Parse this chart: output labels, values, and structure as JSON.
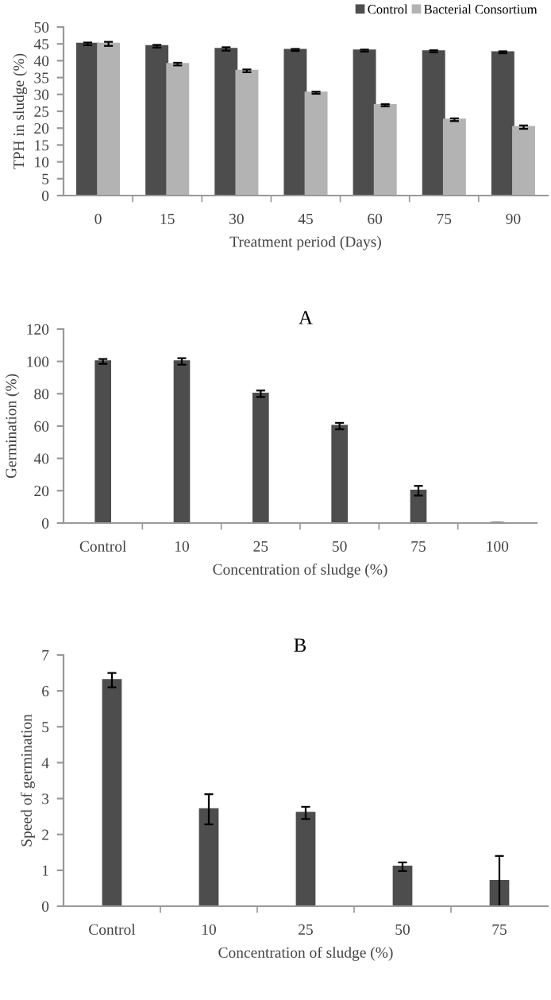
{
  "chart_data": [
    {
      "type": "bar",
      "xlabel": "Treatment period (Days)",
      "ylabel": "TPH in sludge (%)",
      "annotations": [
        "A"
      ],
      "categories": [
        "0",
        "15",
        "30",
        "45",
        "60",
        "75",
        "90"
      ],
      "ylim": [
        0,
        50
      ],
      "yticks": [
        0,
        5,
        10,
        15,
        20,
        25,
        30,
        35,
        40,
        45,
        50
      ],
      "legend": "top right",
      "grid": false,
      "series": [
        {
          "name": "Control",
          "color": "#4d4d4d",
          "values": [
            45,
            44.3,
            43.5,
            43.2,
            43,
            42.8,
            42.5
          ],
          "errors": [
            0.4,
            0.4,
            0.5,
            0.3,
            0.3,
            0.3,
            0.3
          ]
        },
        {
          "name": "Bacterial Consortium",
          "color": "#b3b3b3",
          "values": [
            45,
            39,
            37,
            30.5,
            26.8,
            22.5,
            20.3
          ],
          "errors": [
            0.6,
            0.4,
            0.4,
            0.3,
            0.3,
            0.4,
            0.5
          ]
        }
      ]
    },
    {
      "type": "bar",
      "xlabel": "Concentration of sludge (%)",
      "ylabel": "Germination (%)",
      "annotations": [
        "B"
      ],
      "categories": [
        "Control",
        "10",
        "25",
        "50",
        "75",
        "100"
      ],
      "ylim": [
        0,
        120
      ],
      "yticks": [
        0,
        20,
        40,
        60,
        80,
        100,
        120
      ],
      "grid": false,
      "series": [
        {
          "color": "#4d4d4d",
          "values": [
            100,
            100,
            80,
            60,
            20,
            0
          ],
          "errors": [
            1.5,
            2,
            2,
            2,
            3,
            null
          ]
        }
      ]
    },
    {
      "type": "bar",
      "xlabel": "Concentration of sludge (%)",
      "ylabel": "Speed of germination",
      "categories": [
        "Control",
        "10",
        "25",
        "50",
        "75"
      ],
      "ylim": [
        0,
        7
      ],
      "yticks": [
        0,
        1,
        2,
        3,
        4,
        5,
        6,
        7
      ],
      "grid": false,
      "series": [
        {
          "color": "#4d4d4d",
          "values": [
            6.3,
            2.7,
            2.6,
            1.1,
            0.7
          ],
          "errors": [
            0.2,
            0.42,
            0.17,
            0.12,
            0.7
          ]
        }
      ]
    }
  ]
}
